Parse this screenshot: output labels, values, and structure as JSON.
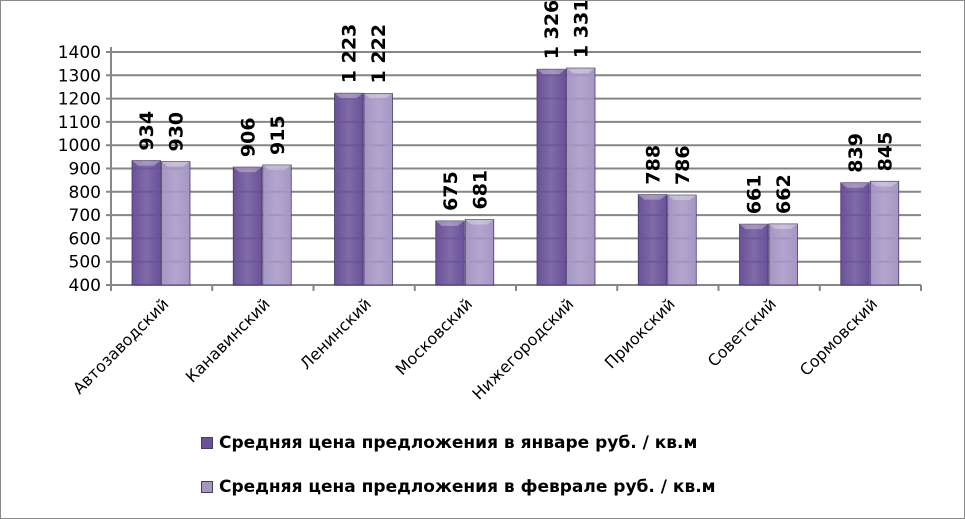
{
  "chart_data": {
    "type": "bar",
    "categories": [
      "Автозаводский",
      "Канавинский",
      "Ленинский",
      "Московский",
      "Нижегородский",
      "Приокский",
      "Советский",
      "Сормовский"
    ],
    "series": [
      {
        "name": "Средняя цена предложения в январе руб. / кв.м",
        "color": "#6a5199",
        "values": [
          934,
          906,
          1223,
          675,
          1326,
          788,
          661,
          839
        ],
        "labels": [
          "934",
          "906",
          "1 223",
          "675",
          "1 326",
          "788",
          "661",
          "839"
        ]
      },
      {
        "name": "Средняя цена предложения в феврале руб. / кв.м",
        "color": "#a596c4",
        "values": [
          930,
          915,
          1222,
          681,
          1331,
          786,
          662,
          845
        ],
        "labels": [
          "930",
          "915",
          "1 222",
          "681",
          "1 331",
          "786",
          "662",
          "845"
        ]
      }
    ],
    "ylim": [
      400,
      1400
    ],
    "yticks": [
      400,
      500,
      600,
      700,
      800,
      900,
      1000,
      1100,
      1200,
      1300,
      1400
    ],
    "grid": true,
    "legend": "bottom"
  }
}
